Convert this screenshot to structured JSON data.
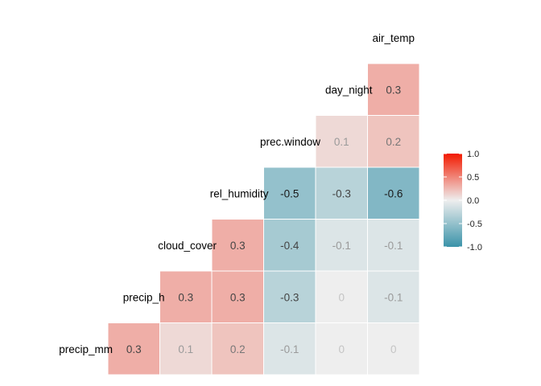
{
  "chart_data": {
    "type": "heatmap",
    "variables": [
      "precip_mm",
      "precip_h",
      "cloud_cover",
      "rel_humidity",
      "prec.window",
      "day_night",
      "air_temp"
    ],
    "columns": [
      "precip_mm",
      "precip_h",
      "cloud_cover",
      "rel_humidity",
      "prec.window",
      "day_night"
    ],
    "cells": [
      {
        "row": "precip_mm",
        "col": "precip_mm",
        "value": 0.3,
        "label": "0.3"
      },
      {
        "row": "precip_mm",
        "col": "precip_h",
        "value": 0.1,
        "label": "0.1"
      },
      {
        "row": "precip_mm",
        "col": "cloud_cover",
        "value": 0.2,
        "label": "0.2"
      },
      {
        "row": "precip_mm",
        "col": "rel_humidity",
        "value": -0.1,
        "label": "-0.1"
      },
      {
        "row": "precip_mm",
        "col": "prec.window",
        "value": 0,
        "label": "0"
      },
      {
        "row": "precip_mm",
        "col": "day_night",
        "value": 0,
        "label": "0"
      },
      {
        "row": "precip_h",
        "col": "precip_h",
        "value": 0.3,
        "label": "0.3"
      },
      {
        "row": "precip_h",
        "col": "cloud_cover",
        "value": 0.3,
        "label": "0.3"
      },
      {
        "row": "precip_h",
        "col": "rel_humidity",
        "value": -0.3,
        "label": "-0.3"
      },
      {
        "row": "precip_h",
        "col": "prec.window",
        "value": 0,
        "label": "0"
      },
      {
        "row": "precip_h",
        "col": "day_night",
        "value": -0.1,
        "label": "-0.1"
      },
      {
        "row": "cloud_cover",
        "col": "cloud_cover",
        "value": 0.3,
        "label": "0.3"
      },
      {
        "row": "cloud_cover",
        "col": "rel_humidity",
        "value": -0.4,
        "label": "-0.4"
      },
      {
        "row": "cloud_cover",
        "col": "prec.window",
        "value": -0.1,
        "label": "-0.1"
      },
      {
        "row": "cloud_cover",
        "col": "day_night",
        "value": -0.1,
        "label": "-0.1"
      },
      {
        "row": "rel_humidity",
        "col": "rel_humidity",
        "value": -0.5,
        "label": "-0.5"
      },
      {
        "row": "rel_humidity",
        "col": "prec.window",
        "value": -0.3,
        "label": "-0.3"
      },
      {
        "row": "rel_humidity",
        "col": "day_night",
        "value": -0.6,
        "label": "-0.6"
      },
      {
        "row": "prec.window",
        "col": "prec.window",
        "value": 0.1,
        "label": "0.1"
      },
      {
        "row": "prec.window",
        "col": "day_night",
        "value": 0.2,
        "label": "0.2"
      },
      {
        "row": "day_night",
        "col": "day_night",
        "value": 0.3,
        "label": "0.3"
      }
    ],
    "legend": {
      "placement": "right",
      "ticks": [
        "1.0",
        "0.5",
        "0.0",
        "-0.5",
        "-1.0"
      ],
      "tick_values": [
        1.0,
        0.5,
        0.0,
        -0.5,
        -1.0
      ],
      "range": [
        -1,
        1
      ]
    },
    "colors": {
      "low": "#3A93A9",
      "mid": "#EEEEEE",
      "high": "#F21A00",
      "grid_line": "#ffffff"
    },
    "title": "",
    "xlabel": "",
    "ylabel": ""
  }
}
